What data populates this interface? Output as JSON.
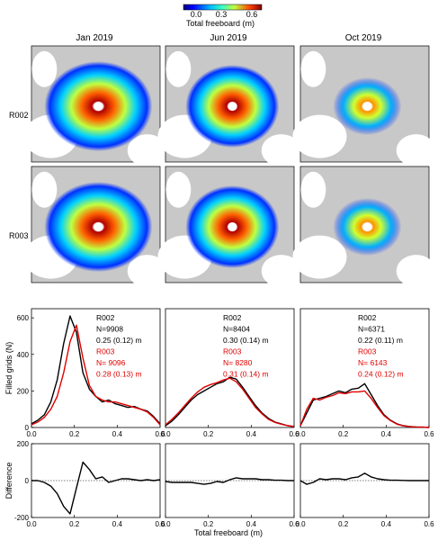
{
  "colorbar": {
    "label": "Total freeboard (m)",
    "ticks": [
      "0.0",
      "0.3",
      "0.6"
    ],
    "colors": [
      "#00007f",
      "#0040ff",
      "#00c0ff",
      "#40ffbf",
      "#c0ff40",
      "#ffbf00",
      "#ff4000",
      "#7f0000"
    ]
  },
  "map_panel": {
    "column_titles": [
      "Jan 2019",
      "Jun 2019",
      "Oct 2019"
    ],
    "row_labels": [
      "R002",
      "R003"
    ],
    "land_color": "#c8c8c8",
    "ocean_color": "#ffffff"
  },
  "chart_data": [
    {
      "type": "line",
      "panel": "Jan 2019 histogram",
      "ylabel": "Filled grids (N)",
      "xlim": [
        0,
        0.6
      ],
      "ylim": [
        0,
        650
      ],
      "xticks": [
        "0.0",
        "0.2",
        "0.4",
        "0.6"
      ],
      "yticks": [
        "0",
        "200",
        "400",
        "600"
      ],
      "x": [
        0.0,
        0.03,
        0.06,
        0.09,
        0.12,
        0.15,
        0.18,
        0.21,
        0.24,
        0.27,
        0.3,
        0.33,
        0.36,
        0.39,
        0.42,
        0.45,
        0.48,
        0.51,
        0.54,
        0.57,
        0.6
      ],
      "series": [
        {
          "name": "R002",
          "color": "#000000",
          "values": [
            20,
            40,
            70,
            140,
            260,
            460,
            610,
            520,
            300,
            210,
            170,
            140,
            150,
            130,
            120,
            110,
            115,
            100,
            90,
            60,
            20
          ]
        },
        {
          "name": "R003",
          "color": "#e00000",
          "values": [
            15,
            30,
            55,
            100,
            170,
            300,
            470,
            560,
            380,
            230,
            170,
            150,
            140,
            140,
            130,
            120,
            110,
            100,
            85,
            55,
            15
          ]
        }
      ],
      "legend_lines": [
        {
          "text": "R002",
          "color": "#000000"
        },
        {
          "text": "N=9908",
          "color": "#000000"
        },
        {
          "text": "0.25 (0.12) m",
          "color": "#000000"
        },
        {
          "text": "R003",
          "color": "#e00000"
        },
        {
          "text": "N= 9096",
          "color": "#e00000"
        },
        {
          "text": "0.28 (0.13) m",
          "color": "#e00000"
        }
      ]
    },
    {
      "type": "line",
      "panel": "Jun 2019 histogram",
      "xlim": [
        0,
        0.6
      ],
      "ylim": [
        0,
        650
      ],
      "xticks": [
        "0.0",
        "0.2",
        "0.4",
        "0.6"
      ],
      "x": [
        0.0,
        0.03,
        0.06,
        0.09,
        0.12,
        0.15,
        0.18,
        0.21,
        0.24,
        0.27,
        0.3,
        0.33,
        0.36,
        0.39,
        0.42,
        0.45,
        0.48,
        0.51,
        0.54,
        0.57,
        0.6
      ],
      "series": [
        {
          "name": "R002",
          "color": "#000000",
          "values": [
            10,
            35,
            70,
            110,
            150,
            180,
            200,
            220,
            240,
            250,
            275,
            265,
            220,
            170,
            120,
            80,
            50,
            30,
            20,
            10,
            5
          ]
        },
        {
          "name": "R003",
          "color": "#e00000",
          "values": [
            15,
            45,
            80,
            120,
            160,
            195,
            220,
            235,
            245,
            260,
            270,
            250,
            210,
            160,
            110,
            75,
            45,
            28,
            18,
            10,
            5
          ]
        }
      ],
      "legend_lines": [
        {
          "text": "R002",
          "color": "#000000"
        },
        {
          "text": "N=8404",
          "color": "#000000"
        },
        {
          "text": "0.30 (0.14) m",
          "color": "#000000"
        },
        {
          "text": "R003",
          "color": "#e00000"
        },
        {
          "text": "N= 8280",
          "color": "#e00000"
        },
        {
          "text": "0.31 (0.14) m",
          "color": "#e00000"
        }
      ]
    },
    {
      "type": "line",
      "panel": "Oct 2019 histogram",
      "xlim": [
        0,
        0.6
      ],
      "ylim": [
        0,
        650
      ],
      "xticks": [
        "0.0",
        "0.2",
        "0.4",
        "0.6"
      ],
      "x": [
        0.0,
        0.03,
        0.06,
        0.09,
        0.12,
        0.15,
        0.18,
        0.21,
        0.24,
        0.27,
        0.3,
        0.33,
        0.36,
        0.39,
        0.42,
        0.45,
        0.48,
        0.51,
        0.54,
        0.57,
        0.6
      ],
      "series": [
        {
          "name": "R002",
          "color": "#000000",
          "values": [
            10,
            80,
            150,
            160,
            170,
            185,
            200,
            190,
            210,
            215,
            240,
            180,
            120,
            70,
            40,
            20,
            10,
            5,
            3,
            2,
            0
          ]
        },
        {
          "name": "R003",
          "color": "#e00000",
          "values": [
            10,
            100,
            160,
            150,
            165,
            175,
            190,
            185,
            195,
            195,
            200,
            160,
            110,
            65,
            38,
            18,
            9,
            5,
            3,
            2,
            0
          ]
        }
      ],
      "legend_lines": [
        {
          "text": "R002",
          "color": "#000000"
        },
        {
          "text": "N=6371",
          "color": "#000000"
        },
        {
          "text": "0.22 (0.11) m",
          "color": "#000000"
        },
        {
          "text": "R003",
          "color": "#e00000"
        },
        {
          "text": "N= 6143",
          "color": "#e00000"
        },
        {
          "text": "0.24 (0.12) m",
          "color": "#e00000"
        }
      ]
    },
    {
      "type": "line",
      "panel": "Jan 2019 difference",
      "ylabel": "Difference",
      "xlim": [
        0,
        0.6
      ],
      "ylim": [
        -200,
        200
      ],
      "xticks": [
        "0.0",
        "0.2",
        "0.4",
        "0.6"
      ],
      "yticks": [
        "-200",
        "0",
        "200"
      ],
      "x": [
        0.0,
        0.03,
        0.06,
        0.09,
        0.12,
        0.15,
        0.18,
        0.21,
        0.24,
        0.27,
        0.3,
        0.33,
        0.36,
        0.39,
        0.42,
        0.45,
        0.48,
        0.51,
        0.54,
        0.57,
        0.6
      ],
      "series": [
        {
          "name": "",
          "color": "#000000",
          "values": [
            0,
            0,
            -10,
            -30,
            -70,
            -140,
            -180,
            -40,
            100,
            60,
            10,
            20,
            -10,
            0,
            10,
            10,
            5,
            0,
            5,
            0,
            5
          ]
        }
      ]
    },
    {
      "type": "line",
      "panel": "Jun 2019 difference",
      "xlim": [
        0,
        0.6
      ],
      "ylim": [
        -200,
        200
      ],
      "xticks": [
        "0.0",
        "0.2",
        "0.4",
        "0.6"
      ],
      "x": [
        0.0,
        0.03,
        0.06,
        0.09,
        0.12,
        0.15,
        0.18,
        0.21,
        0.24,
        0.27,
        0.3,
        0.33,
        0.36,
        0.39,
        0.42,
        0.45,
        0.48,
        0.51,
        0.54,
        0.57,
        0.6
      ],
      "series": [
        {
          "name": "",
          "color": "#000000",
          "values": [
            -5,
            -10,
            -10,
            -10,
            -10,
            -15,
            -20,
            -15,
            -5,
            -10,
            5,
            15,
            10,
            10,
            10,
            5,
            5,
            2,
            2,
            0,
            0
          ]
        }
      ]
    },
    {
      "type": "line",
      "panel": "Oct 2019 difference",
      "xlim": [
        0,
        0.6
      ],
      "ylim": [
        -200,
        200
      ],
      "xticks": [
        "0.0",
        "0.2",
        "0.4",
        "0.6"
      ],
      "x": [
        0.0,
        0.03,
        0.06,
        0.09,
        0.12,
        0.15,
        0.18,
        0.21,
        0.24,
        0.27,
        0.3,
        0.33,
        0.36,
        0.39,
        0.42,
        0.45,
        0.48,
        0.51,
        0.54,
        0.57,
        0.6
      ],
      "series": [
        {
          "name": "",
          "color": "#000000",
          "values": [
            0,
            -20,
            -10,
            10,
            5,
            10,
            10,
            5,
            15,
            20,
            40,
            20,
            10,
            5,
            2,
            2,
            1,
            0,
            0,
            0,
            0
          ]
        }
      ]
    }
  ],
  "shared_xlabel": "Total freeboard (m)"
}
